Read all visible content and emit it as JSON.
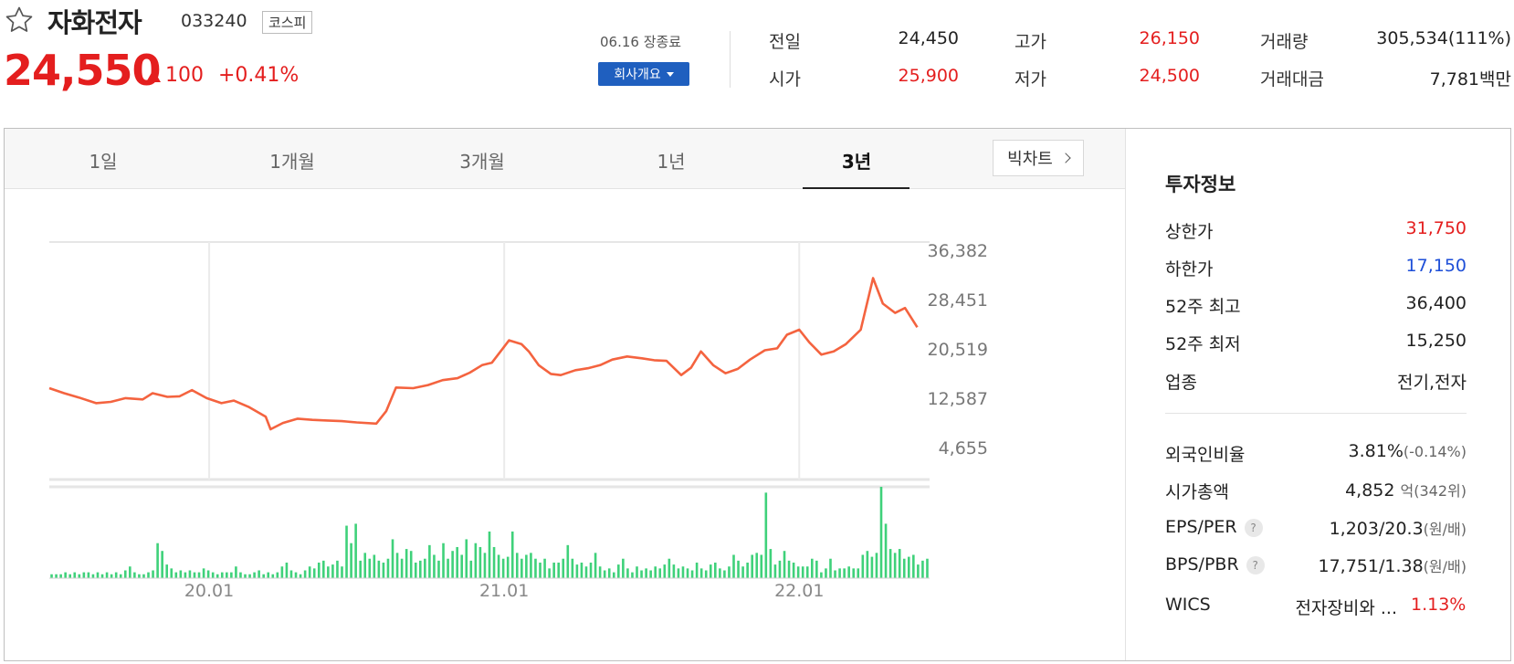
{
  "header": {
    "name": "자화전자",
    "code": "033240",
    "market": "코스피",
    "price": "24,550",
    "change": "100",
    "change_pct": "+0.41%",
    "close_date": "06.16 장종료",
    "company_button": "회사개요"
  },
  "stats": {
    "prev_label": "전일",
    "prev_value": "24,450",
    "open_label": "시가",
    "open_value": "25,900",
    "high_label": "고가",
    "high_value": "26,150",
    "low_label": "저가",
    "low_value": "24,500",
    "volume_label": "거래량",
    "volume_value": "305,534(111%)",
    "amount_label": "거래대금",
    "amount_value": "7,781",
    "amount_unit": "백만"
  },
  "tabs": [
    "1일",
    "1개월",
    "3개월",
    "1년",
    "3년"
  ],
  "active_tab": "3년",
  "big_chart": "빅차트",
  "chart_data": {
    "type": "line",
    "y_ticks": [
      "36,382",
      "28,451",
      "20,519",
      "12,587",
      "4,655"
    ],
    "y_tick_values": [
      36382,
      28451,
      20519,
      12587,
      4655
    ],
    "ylim": [
      4655,
      36382
    ],
    "x_ticks": [
      "20.01",
      "21.01",
      "22.01"
    ],
    "x_tick_positions": [
      1,
      13,
      25
    ],
    "x_range": [
      -5.5,
      30.3
    ],
    "price": [
      [
        -5.5,
        14200
      ],
      [
        -4.9,
        13400
      ],
      [
        -4.3,
        12700
      ],
      [
        -3.6,
        11800
      ],
      [
        -3.0,
        12000
      ],
      [
        -2.4,
        12600
      ],
      [
        -1.7,
        12400
      ],
      [
        -1.3,
        13400
      ],
      [
        -0.7,
        12800
      ],
      [
        -0.2,
        12900
      ],
      [
        0.3,
        13900
      ],
      [
        0.9,
        12600
      ],
      [
        1.5,
        11800
      ],
      [
        2.0,
        12200
      ],
      [
        2.6,
        11200
      ],
      [
        3.3,
        9600
      ],
      [
        3.5,
        7600
      ],
      [
        4.0,
        8600
      ],
      [
        4.6,
        9300
      ],
      [
        5.2,
        9100
      ],
      [
        5.8,
        9000
      ],
      [
        6.4,
        8900
      ],
      [
        7.0,
        8700
      ],
      [
        7.8,
        8500
      ],
      [
        8.2,
        10500
      ],
      [
        8.6,
        14300
      ],
      [
        9.3,
        14200
      ],
      [
        9.9,
        14700
      ],
      [
        10.5,
        15500
      ],
      [
        11.1,
        15800
      ],
      [
        11.6,
        16700
      ],
      [
        12.1,
        17900
      ],
      [
        12.5,
        18300
      ],
      [
        13.2,
        21900
      ],
      [
        13.7,
        21300
      ],
      [
        14.0,
        20100
      ],
      [
        14.4,
        17900
      ],
      [
        14.9,
        16500
      ],
      [
        15.3,
        16300
      ],
      [
        15.9,
        17100
      ],
      [
        16.4,
        17400
      ],
      [
        16.9,
        17900
      ],
      [
        17.4,
        18800
      ],
      [
        18.0,
        19300
      ],
      [
        18.6,
        19000
      ],
      [
        19.1,
        18700
      ],
      [
        19.6,
        18600
      ],
      [
        20.2,
        16300
      ],
      [
        20.6,
        17500
      ],
      [
        21.0,
        20100
      ],
      [
        21.5,
        17900
      ],
      [
        22.0,
        16600
      ],
      [
        22.5,
        17300
      ],
      [
        23.0,
        18800
      ],
      [
        23.6,
        20300
      ],
      [
        24.1,
        20600
      ],
      [
        24.5,
        22800
      ],
      [
        25.0,
        23600
      ],
      [
        25.4,
        21600
      ],
      [
        25.9,
        19600
      ],
      [
        26.4,
        20100
      ],
      [
        26.9,
        21300
      ],
      [
        27.5,
        23600
      ],
      [
        28.0,
        31900
      ],
      [
        28.4,
        27800
      ],
      [
        28.9,
        26300
      ],
      [
        29.3,
        27100
      ],
      [
        29.8,
        24000
      ]
    ],
    "volume": [
      2,
      2,
      2,
      3,
      2,
      3,
      2,
      3,
      3,
      2,
      3,
      2,
      3,
      2,
      3,
      2,
      4,
      6,
      3,
      2,
      2,
      3,
      4,
      18,
      14,
      7,
      5,
      3,
      4,
      3,
      4,
      3,
      3,
      5,
      4,
      3,
      2,
      3,
      3,
      3,
      6,
      3,
      2,
      2,
      3,
      4,
      2,
      3,
      2,
      3,
      6,
      8,
      4,
      3,
      2,
      4,
      6,
      5,
      8,
      9,
      6,
      7,
      9,
      6,
      27,
      18,
      28,
      9,
      13,
      10,
      12,
      9,
      8,
      10,
      20,
      13,
      10,
      15,
      14,
      8,
      9,
      10,
      17,
      12,
      9,
      18,
      10,
      14,
      16,
      12,
      20,
      9,
      18,
      16,
      13,
      24,
      16,
      12,
      10,
      11,
      24,
      13,
      10,
      12,
      13,
      10,
      8,
      10,
      5,
      8,
      8,
      10,
      17,
      10,
      7,
      8,
      6,
      8,
      13,
      6,
      4,
      5,
      3,
      7,
      10,
      5,
      3,
      6,
      4,
      5,
      4,
      6,
      5,
      7,
      10,
      7,
      5,
      6,
      5,
      4,
      8,
      5,
      4,
      7,
      8,
      5,
      4,
      6,
      12,
      9,
      6,
      8,
      12,
      13,
      12,
      44,
      15,
      7,
      9,
      14,
      9,
      8,
      6,
      6,
      6,
      10,
      9,
      3,
      5,
      10,
      4,
      5,
      5,
      6,
      5,
      5,
      12,
      14,
      11,
      13,
      47,
      28,
      15,
      13,
      15,
      10,
      11,
      12,
      7,
      9,
      10
    ]
  },
  "info": {
    "title": "투자정보",
    "upper_limit_label": "상한가",
    "upper_limit": "31,750",
    "lower_limit_label": "하한가",
    "lower_limit": "17,150",
    "high52_label": "52주 최고",
    "high52": "36,400",
    "low52_label": "52주 최저",
    "low52": "15,250",
    "sector_label": "업종",
    "sector": "전기,전자",
    "foreign_label": "외국인비율",
    "foreign": "3.81%",
    "foreign_change": "(-0.14%)",
    "cap_label": "시가총액",
    "cap": "4,852",
    "cap_unit": "억(342위)",
    "eps_label": "EPS/PER",
    "eps": "1,203/20.3",
    "eps_unit": "(원/배)",
    "bps_label": "BPS/PBR",
    "bps": "17,751/1.38",
    "bps_unit": "(원/배)",
    "help": "?",
    "wics_label": "WICS",
    "wics": "전자장비와 ...",
    "wics_pct": "1.13%"
  },
  "colors": {
    "up": "#e41e1e",
    "down": "#1e4fd8",
    "line": "#f4633f",
    "volume": "#3fd17a",
    "button": "#1f5fbf"
  }
}
